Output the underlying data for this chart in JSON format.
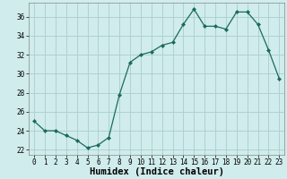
{
  "x": [
    0,
    1,
    2,
    3,
    4,
    5,
    6,
    7,
    8,
    9,
    10,
    11,
    12,
    13,
    14,
    15,
    16,
    17,
    18,
    19,
    20,
    21,
    22,
    23
  ],
  "y": [
    25,
    24,
    24,
    23.5,
    23,
    22.2,
    22.5,
    23.3,
    27.8,
    31.2,
    32.0,
    32.3,
    33.0,
    33.3,
    35.2,
    36.8,
    35.0,
    35.0,
    34.7,
    36.5,
    36.5,
    35.2,
    32.5,
    29.5
  ],
  "line_color": "#1a6b5c",
  "marker": "D",
  "marker_size": 2,
  "bg_color": "#d0ecec",
  "grid_color": "#aacece",
  "xlabel": "Humidex (Indice chaleur)",
  "xlim": [
    -0.5,
    23.5
  ],
  "ylim": [
    21.5,
    37.5
  ],
  "yticks": [
    22,
    24,
    26,
    28,
    30,
    32,
    34,
    36
  ],
  "xticks": [
    0,
    1,
    2,
    3,
    4,
    5,
    6,
    7,
    8,
    9,
    10,
    11,
    12,
    13,
    14,
    15,
    16,
    17,
    18,
    19,
    20,
    21,
    22,
    23
  ],
  "tick_fontsize": 5.5,
  "xlabel_fontsize": 7.5
}
